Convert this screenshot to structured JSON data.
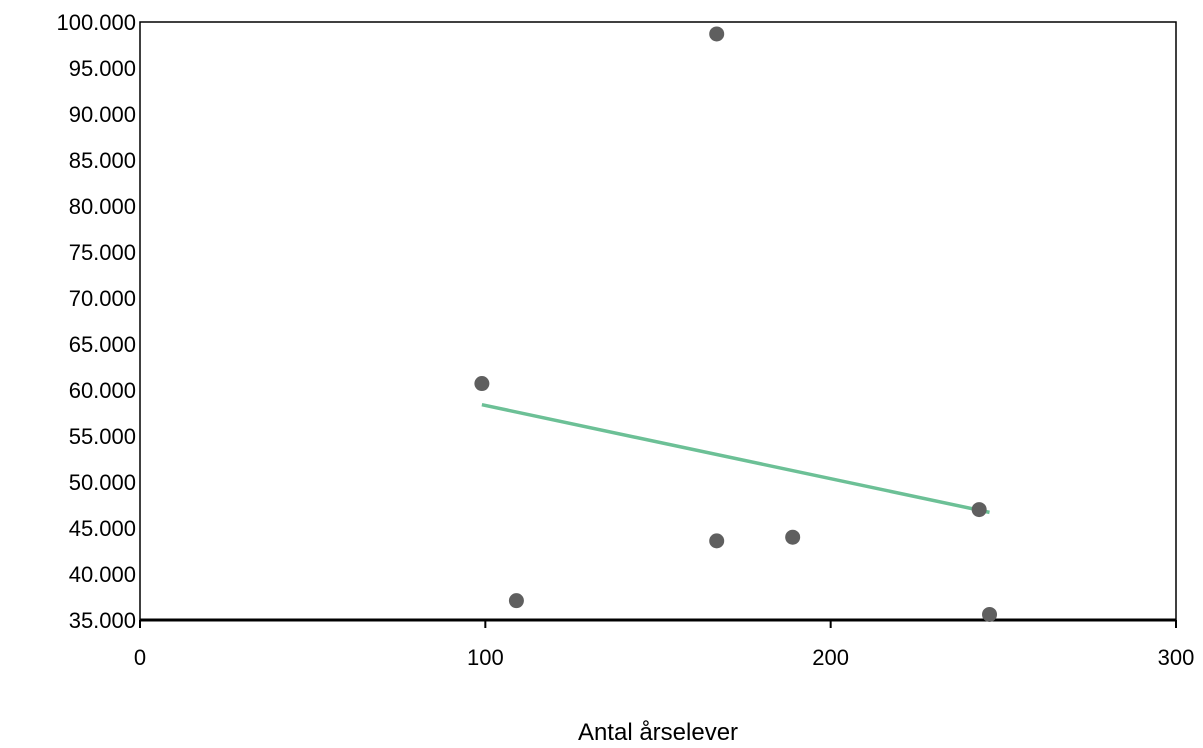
{
  "chart_data": {
    "type": "scatter",
    "title": "",
    "xlabel": "Antal årselever",
    "ylabel": "",
    "xlim": [
      0,
      300
    ],
    "ylim": [
      35000,
      100000
    ],
    "x_ticks": [
      {
        "value": 0,
        "label": "0"
      },
      {
        "value": 100,
        "label": "100"
      },
      {
        "value": 200,
        "label": "200"
      },
      {
        "value": 300,
        "label": "300"
      }
    ],
    "y_ticks": [
      {
        "value": 35000,
        "label": "35.000"
      },
      {
        "value": 40000,
        "label": "40.000"
      },
      {
        "value": 45000,
        "label": "45.000"
      },
      {
        "value": 50000,
        "label": "50.000"
      },
      {
        "value": 55000,
        "label": "55.000"
      },
      {
        "value": 60000,
        "label": "60.000"
      },
      {
        "value": 65000,
        "label": "65.000"
      },
      {
        "value": 70000,
        "label": "70.000"
      },
      {
        "value": 75000,
        "label": "75.000"
      },
      {
        "value": 80000,
        "label": "80.000"
      },
      {
        "value": 85000,
        "label": "85.000"
      },
      {
        "value": 90000,
        "label": "90.000"
      },
      {
        "value": 95000,
        "label": "95.000"
      },
      {
        "value": 100000,
        "label": "100.000"
      }
    ],
    "points": [
      {
        "x": 99,
        "y": 60700
      },
      {
        "x": 109,
        "y": 37100
      },
      {
        "x": 167,
        "y": 98700
      },
      {
        "x": 167,
        "y": 43600
      },
      {
        "x": 189,
        "y": 44000
      },
      {
        "x": 243,
        "y": 47000
      },
      {
        "x": 246,
        "y": 35600
      }
    ],
    "trendline": {
      "x": [
        99,
        246
      ],
      "y": [
        58400,
        46700
      ]
    },
    "grid": false,
    "colors": {
      "points": "#5f5f5f",
      "trendline": "#6cc096",
      "axis": "#000000"
    }
  }
}
